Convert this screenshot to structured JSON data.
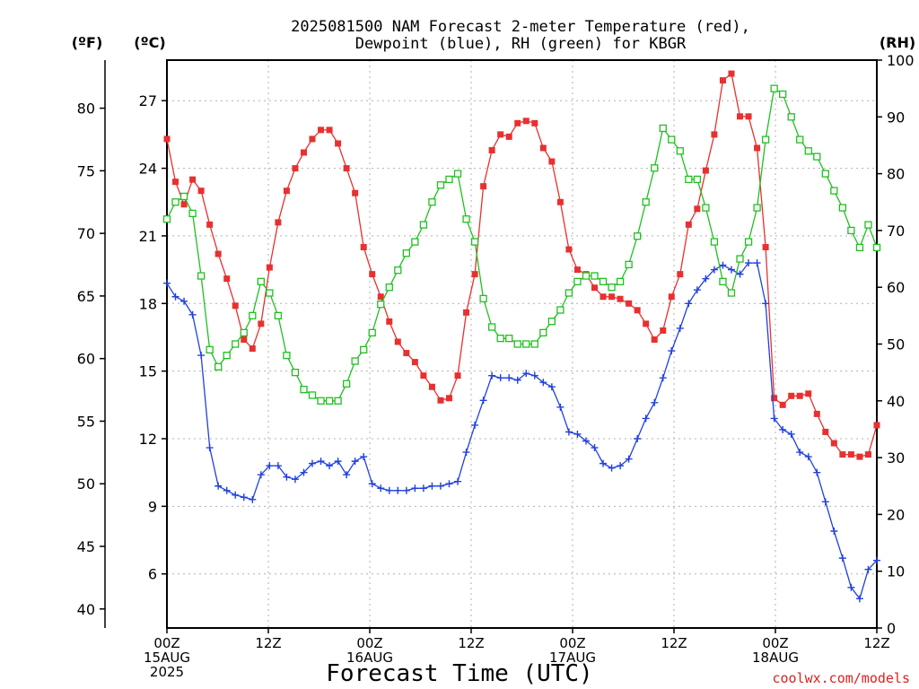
{
  "chart_data": {
    "type": "line",
    "title_line1": "2025081500 NAM Forecast 2-meter Temperature (red),",
    "title_line2": "Dewpoint (blue), RH (green) for KBGR",
    "xlabel": "Forecast Time (UTC)",
    "credit": "coolwx.com/models",
    "left_unit_f": "(ºF)",
    "left_unit_c": "(ºC)",
    "right_unit": "(RH)",
    "x_range_hours": [
      0,
      84
    ],
    "x_ticks": [
      {
        "h": 0,
        "lines": [
          "00Z",
          "15AUG",
          "2025"
        ]
      },
      {
        "h": 12,
        "lines": [
          "12Z"
        ]
      },
      {
        "h": 24,
        "lines": [
          "00Z",
          "16AUG"
        ]
      },
      {
        "h": 36,
        "lines": [
          "12Z"
        ]
      },
      {
        "h": 48,
        "lines": [
          "00Z",
          "17AUG"
        ]
      },
      {
        "h": 60,
        "lines": [
          "12Z"
        ]
      },
      {
        "h": 72,
        "lines": [
          "00Z",
          "18AUG"
        ]
      },
      {
        "h": 84,
        "lines": [
          "12Z"
        ]
      }
    ],
    "y_c_range": [
      3.6,
      28.8
    ],
    "y_c_ticks": [
      6,
      9,
      12,
      15,
      18,
      21,
      24,
      27
    ],
    "y_f_ticks": [
      40,
      45,
      50,
      55,
      60,
      65,
      70,
      75,
      80
    ],
    "y_rh_range": [
      0,
      100
    ],
    "y_rh_ticks": [
      0,
      10,
      20,
      30,
      40,
      50,
      60,
      70,
      80,
      90,
      100
    ],
    "grid": true,
    "series": [
      {
        "name": "Temperature",
        "unit": "C",
        "color": "#e83030",
        "marker": "filled-square",
        "values": [
          25.3,
          23.4,
          22.4,
          23.5,
          23.0,
          21.5,
          20.2,
          19.1,
          17.9,
          16.4,
          16.0,
          17.1,
          19.6,
          21.6,
          23.0,
          24.0,
          24.7,
          25.3,
          25.7,
          25.7,
          25.1,
          24.0,
          22.9,
          20.5,
          19.3,
          18.3,
          17.2,
          16.3,
          15.8,
          15.4,
          14.8,
          14.3,
          13.7,
          13.8,
          14.8,
          17.6,
          19.3,
          23.2,
          24.8,
          25.5,
          25.4,
          26.0,
          26.1,
          26.0,
          24.9,
          24.3,
          22.5,
          20.4,
          19.5,
          19.3,
          18.7,
          18.3,
          18.3,
          18.2,
          18.0,
          17.7,
          17.1,
          16.4,
          16.8,
          18.3,
          19.3,
          21.5,
          22.2,
          23.9,
          25.5,
          27.9,
          28.2,
          26.3,
          26.3,
          24.9,
          20.5,
          13.8,
          13.5,
          13.9,
          13.9,
          14.0,
          13.1,
          12.3,
          11.8,
          11.3,
          11.3,
          11.2,
          11.3,
          12.6
        ]
      },
      {
        "name": "Dewpoint",
        "unit": "C",
        "color": "#2040e0",
        "marker": "plus",
        "values": [
          18.9,
          18.3,
          18.1,
          17.5,
          15.7,
          11.6,
          9.9,
          9.7,
          9.5,
          9.4,
          9.3,
          10.4,
          10.8,
          10.8,
          10.3,
          10.2,
          10.5,
          10.9,
          11.0,
          10.8,
          11.0,
          10.4,
          11.0,
          11.2,
          10.0,
          9.8,
          9.7,
          9.7,
          9.7,
          9.8,
          9.8,
          9.9,
          9.9,
          10.0,
          10.1,
          11.4,
          12.6,
          13.7,
          14.8,
          14.7,
          14.7,
          14.6,
          14.9,
          14.8,
          14.5,
          14.3,
          13.4,
          12.3,
          12.2,
          11.9,
          11.6,
          10.9,
          10.7,
          10.8,
          11.1,
          12.0,
          12.9,
          13.6,
          14.7,
          15.9,
          16.9,
          18.0,
          18.6,
          19.1,
          19.5,
          19.7,
          19.5,
          19.3,
          19.8,
          19.8,
          18.0,
          12.9,
          12.4,
          12.2,
          11.4,
          11.2,
          10.5,
          9.2,
          7.9,
          6.7,
          5.4,
          4.9,
          6.2,
          6.6
        ]
      },
      {
        "name": "RH",
        "unit": "%",
        "color": "#20c020",
        "marker": "open-square",
        "values": [
          72,
          75,
          76,
          73,
          62,
          49,
          46,
          48,
          50,
          52,
          55,
          61,
          59,
          55,
          48,
          45,
          42,
          41,
          40,
          40,
          40,
          43,
          47,
          49,
          52,
          57,
          60,
          63,
          66,
          68,
          71,
          75,
          78,
          79,
          80,
          72,
          68,
          58,
          53,
          51,
          51,
          50,
          50,
          50,
          52,
          54,
          56,
          59,
          61,
          62,
          62,
          61,
          60,
          61,
          64,
          69,
          75,
          81,
          88,
          86,
          84,
          79,
          79,
          74,
          68,
          61,
          59,
          65,
          68,
          74,
          86,
          95,
          94,
          90,
          86,
          84,
          83,
          80,
          77,
          74,
          70,
          67,
          71,
          67
        ]
      }
    ]
  }
}
